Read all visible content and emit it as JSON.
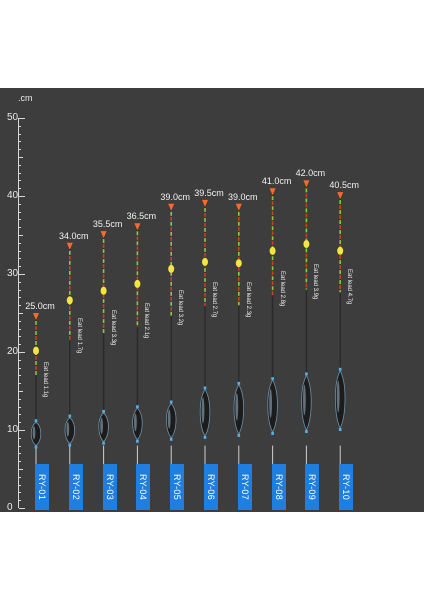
{
  "ruler": {
    "unit": "cm",
    "ticks": [
      "50",
      "40",
      "30",
      "20",
      "10",
      "0"
    ]
  },
  "colors": {
    "background": "#3d3d3d",
    "tag": "#1f7fe0",
    "tip_orange": "#ff6a2a",
    "bead_yellow": "#f2e640",
    "stem_green": "#8acb3a",
    "stem_red": "#d23a2a"
  },
  "floats": [
    {
      "model": "RY-01",
      "length_label": "25.0cm",
      "length_cm": 25.0,
      "eat_lead": "Eat lead 1.1g"
    },
    {
      "model": "RY-02",
      "length_label": "34.0cm",
      "length_cm": 34.0,
      "eat_lead": "Eat lead 1.7g"
    },
    {
      "model": "RY-03",
      "length_label": "35.5cm",
      "length_cm": 35.5,
      "eat_lead": "Eat lead 3.3g"
    },
    {
      "model": "RY-04",
      "length_label": "36.5cm",
      "length_cm": 36.5,
      "eat_lead": "Eat lead 2.1g"
    },
    {
      "model": "RY-05",
      "length_label": "39.0cm",
      "length_cm": 39.0,
      "eat_lead": "Eat lead 3.2g"
    },
    {
      "model": "RY-06",
      "length_label": "39.5cm",
      "length_cm": 39.5,
      "eat_lead": "Eat lead 2.7g"
    },
    {
      "model": "RY-07",
      "length_label": "39.0cm",
      "length_cm": 39.0,
      "eat_lead": "Eat lead 2.3g"
    },
    {
      "model": "RY-08",
      "length_label": "41.0cm",
      "length_cm": 41.0,
      "eat_lead": "Eat lead 2.8g"
    },
    {
      "model": "RY-09",
      "length_label": "42.0cm",
      "length_cm": 42.0,
      "eat_lead": "Eat lead 3.9g"
    },
    {
      "model": "RY-10",
      "length_label": "40.5cm",
      "length_cm": 40.5,
      "eat_lead": "Eat lead 4.7g"
    }
  ]
}
